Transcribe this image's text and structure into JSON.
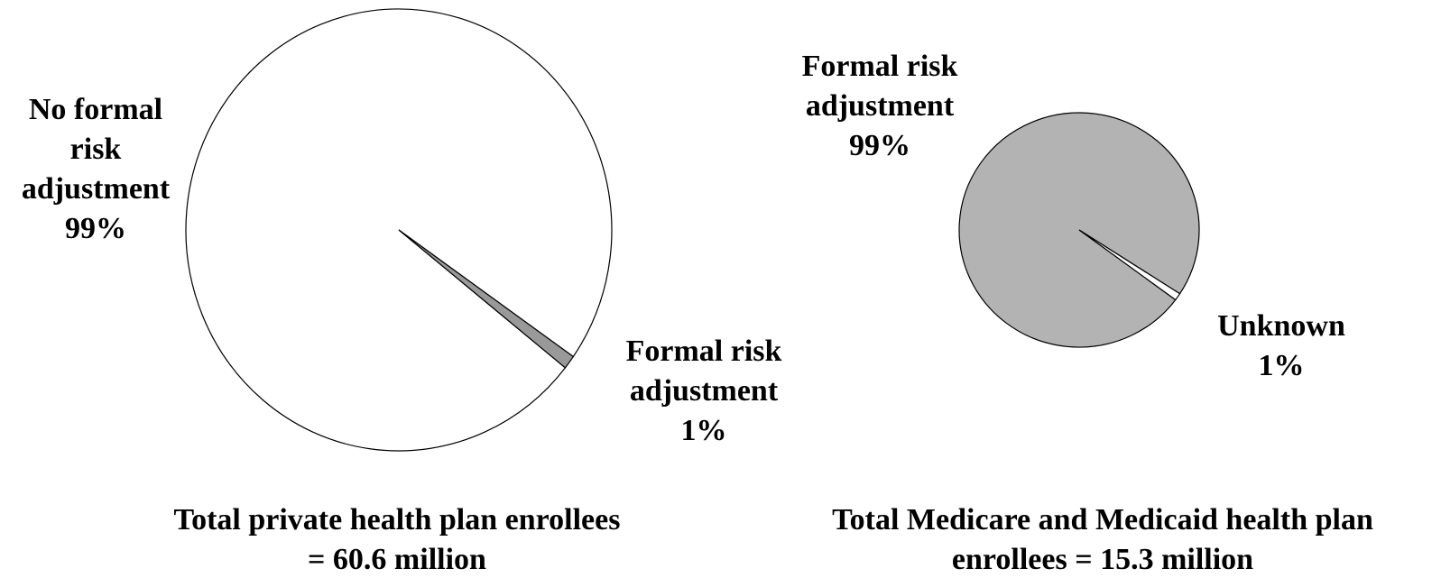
{
  "chart_data": [
    {
      "type": "pie",
      "title": "Total private health plan enrollees = 60.6 million",
      "categories": [
        "No formal risk adjustment",
        "Formal risk adjustment"
      ],
      "values": [
        99,
        1
      ],
      "value_labels": [
        "99%",
        "1%"
      ],
      "colors": [
        "#ffffff",
        "#999999"
      ]
    },
    {
      "type": "pie",
      "title": "Total Medicare and Medicaid health plan enrollees = 15.3 million",
      "categories": [
        "Formal risk adjustment",
        "Unknown"
      ],
      "values": [
        99,
        1
      ],
      "value_labels": [
        "99%",
        "1%"
      ],
      "colors": [
        "#b3b3b3",
        "#ffffff"
      ]
    }
  ]
}
